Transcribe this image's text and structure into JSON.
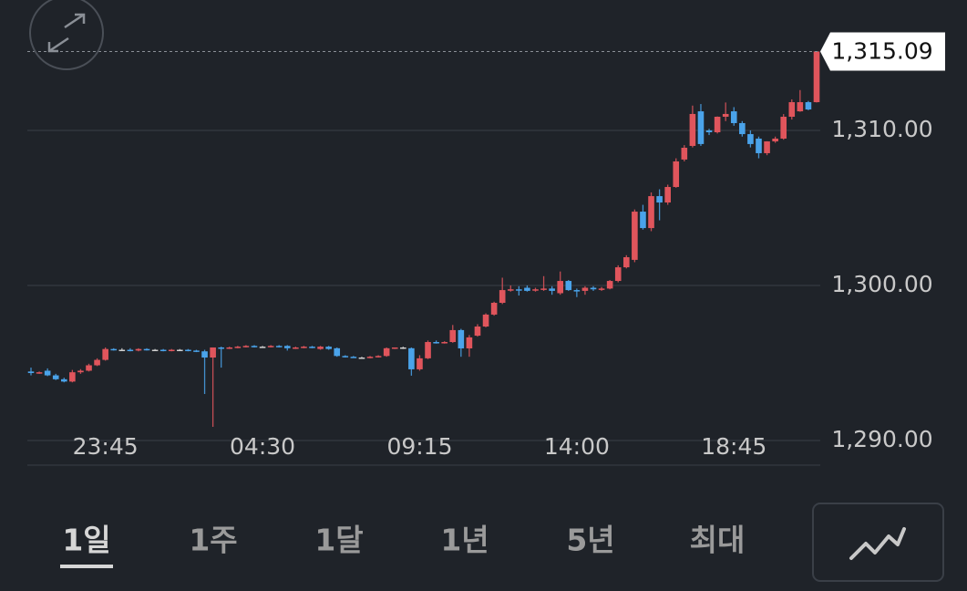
{
  "chart_data": {
    "type": "candlestick",
    "x": [
      null,
      null,
      null,
      null,
      null,
      null,
      null,
      null,
      null,
      "23:45",
      null,
      null,
      null,
      null,
      null,
      null,
      null,
      null,
      null,
      null,
      null,
      null,
      null,
      null,
      null,
      null,
      null,
      null,
      "04:30",
      null,
      null,
      null,
      null,
      null,
      null,
      null,
      null,
      null,
      null,
      null,
      null,
      null,
      null,
      null,
      null,
      null,
      null,
      "09:15",
      null,
      null,
      null,
      null,
      null,
      null,
      null,
      null,
      null,
      null,
      null,
      null,
      null,
      null,
      null,
      null,
      null,
      null,
      "14:00",
      null,
      null,
      null,
      null,
      null,
      null,
      null,
      null,
      null,
      null,
      null,
      null,
      null,
      null,
      null,
      null,
      null,
      null,
      "18:45",
      null,
      null,
      null,
      null,
      null,
      null,
      null,
      null,
      null,
      null
    ],
    "open": [
      1294.45,
      1294.35,
      1294.5,
      1294.2,
      1293.95,
      1293.8,
      1294.4,
      1294.5,
      1294.85,
      1295.2,
      1295.9,
      1295.85,
      1295.85,
      1295.8,
      1295.9,
      1295.85,
      1295.85,
      1295.8,
      1295.85,
      1295.85,
      1295.8,
      1295.75,
      1295.35,
      1296.0,
      1295.95,
      1296.0,
      1296.05,
      1296.1,
      1296.05,
      1296.05,
      1296.1,
      1296.1,
      1295.95,
      1296.0,
      1296.05,
      1295.9,
      1296.05,
      1295.95,
      1295.45,
      1295.4,
      1295.35,
      1295.35,
      1295.4,
      1295.45,
      1295.95,
      1296.0,
      1295.95,
      1294.59,
      1295.3,
      1296.35,
      1296.3,
      1296.35,
      1297.12,
      1295.94,
      1296.76,
      1297.35,
      1298.12,
      1298.88,
      1299.7,
      1299.75,
      1299.85,
      1299.7,
      1299.75,
      1299.8,
      1299.5,
      1300.29,
      1299.7,
      1299.65,
      1299.85,
      1299.75,
      1299.8,
      1300.29,
      1301.17,
      1301.65,
      1304.76,
      1303.7,
      1305.76,
      1305.35,
      1306.35,
      1308.12,
      1309.0,
      1311.23,
      1310.0,
      1309.88,
      1310.88,
      1311.23,
      1310.47,
      1309.76,
      1309.47,
      1308.53,
      1309.29,
      1309.47,
      1310.88,
      1311.23,
      1311.82,
      1311.82
    ],
    "high": [
      1294.7,
      1294.45,
      1294.65,
      1294.3,
      1294.05,
      1294.55,
      1294.6,
      1294.95,
      1295.3,
      1296.0,
      1295.95,
      1295.95,
      1295.95,
      1295.95,
      1295.95,
      1295.9,
      1295.9,
      1295.9,
      1295.9,
      1295.9,
      1295.85,
      1295.85,
      1296.0,
      1296.05,
      1296.05,
      1296.1,
      1296.15,
      1296.15,
      1296.1,
      1296.15,
      1296.15,
      1296.15,
      1296.05,
      1296.1,
      1296.1,
      1296.1,
      1296.1,
      1296.0,
      1295.5,
      1295.45,
      1295.4,
      1295.45,
      1295.5,
      1296.0,
      1296.0,
      1296.05,
      1296.0,
      1295.5,
      1296.45,
      1296.45,
      1296.4,
      1297.45,
      1297.2,
      1296.8,
      1297.5,
      1298.2,
      1298.95,
      1300.5,
      1300.0,
      1299.95,
      1300.0,
      1299.85,
      1300.6,
      1299.95,
      1300.9,
      1300.35,
      1299.8,
      1299.95,
      1299.95,
      1299.9,
      1300.35,
      1301.3,
      1301.95,
      1304.9,
      1305.2,
      1306.0,
      1306.2,
      1306.5,
      1308.2,
      1309.05,
      1311.6,
      1311.7,
      1310.1,
      1310.9,
      1311.8,
      1311.5,
      1310.6,
      1310.0,
      1309.6,
      1309.3,
      1309.6,
      1311.05,
      1312.0,
      1312.6,
      1311.9,
      1315.09
    ],
    "low": [
      1294.2,
      1294.3,
      1294.15,
      1293.9,
      1293.75,
      1293.75,
      1294.3,
      1294.45,
      1294.8,
      1295.15,
      1295.8,
      1295.8,
      1295.75,
      1295.75,
      1295.8,
      1295.8,
      1295.75,
      1295.75,
      1295.8,
      1295.75,
      1295.7,
      1293.0,
      1290.88,
      1294.7,
      1295.9,
      1295.95,
      1296.0,
      1296.0,
      1296.0,
      1296.0,
      1296.0,
      1295.8,
      1295.9,
      1295.95,
      1295.95,
      1295.85,
      1295.85,
      1295.4,
      1295.35,
      1295.35,
      1295.3,
      1295.3,
      1295.35,
      1295.4,
      1295.9,
      1295.9,
      1294.18,
      1294.5,
      1295.25,
      1296.25,
      1296.25,
      1296.3,
      1295.4,
      1295.4,
      1296.7,
      1297.3,
      1298.05,
      1298.8,
      1299.6,
      1299.35,
      1299.6,
      1299.6,
      1299.65,
      1299.4,
      1299.4,
      1299.65,
      1299.25,
      1299.4,
      1299.65,
      1299.65,
      1299.75,
      1300.2,
      1301.1,
      1301.5,
      1303.6,
      1303.5,
      1304.2,
      1305.2,
      1306.3,
      1308.0,
      1308.9,
      1309.0,
      1309.7,
      1309.8,
      1310.6,
      1310.3,
      1309.6,
      1308.9,
      1308.2,
      1308.4,
      1309.2,
      1309.4,
      1310.7,
      1311.2,
      1311.3,
      1311.8
    ],
    "close": [
      1294.35,
      1294.4,
      1294.2,
      1293.95,
      1293.8,
      1294.4,
      1294.5,
      1294.85,
      1295.2,
      1295.9,
      1295.85,
      1295.85,
      1295.8,
      1295.9,
      1295.85,
      1295.85,
      1295.8,
      1295.85,
      1295.85,
      1295.8,
      1295.75,
      1295.35,
      1296.0,
      1295.95,
      1296.0,
      1296.05,
      1296.1,
      1296.05,
      1296.05,
      1296.1,
      1296.05,
      1295.95,
      1296.0,
      1296.05,
      1296.0,
      1296.05,
      1295.9,
      1295.45,
      1295.4,
      1295.35,
      1295.35,
      1295.4,
      1295.45,
      1295.95,
      1296.0,
      1296.0,
      1294.59,
      1295.3,
      1296.35,
      1296.3,
      1296.35,
      1297.12,
      1295.94,
      1296.65,
      1297.35,
      1298.12,
      1298.88,
      1299.7,
      1299.75,
      1299.7,
      1299.65,
      1299.75,
      1299.8,
      1299.65,
      1300.29,
      1299.7,
      1299.65,
      1299.85,
      1299.75,
      1299.8,
      1300.29,
      1301.17,
      1301.82,
      1304.76,
      1303.7,
      1305.76,
      1305.35,
      1306.35,
      1308.0,
      1308.88,
      1311.06,
      1309.12,
      1309.88,
      1310.88,
      1311.06,
      1310.47,
      1309.76,
      1309.12,
      1308.53,
      1309.29,
      1309.47,
      1310.88,
      1311.82,
      1311.82,
      1311.35,
      1315.09
    ],
    "up_color": "#e0555c",
    "down_color": "#4aa3ea",
    "ylim": [
      1288.41,
      1318.41
    ],
    "yticks": [
      {
        "value": 1290,
        "label": "1,290.00"
      },
      {
        "value": 1300,
        "label": "1,300.00"
      },
      {
        "value": 1310,
        "label": "1,310.00"
      }
    ],
    "grid": true,
    "last_price": {
      "value": 1315.09,
      "label": "1,315.09"
    }
  },
  "range_buttons": [
    "1일",
    "1주",
    "1달",
    "1년",
    "5년",
    "최대"
  ],
  "selected_range": 0
}
